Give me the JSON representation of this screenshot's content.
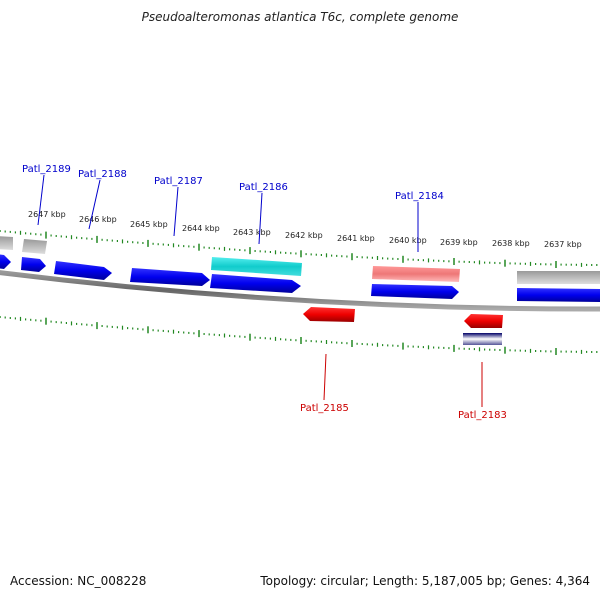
{
  "title": "Pseudoalteromonas atlantica T6c, complete genome",
  "footer": {
    "accession": "Accession: NC_008228",
    "summary": "Topology: circular; Length: 5,187,005 bp; Genes: 4,364"
  },
  "ruler": {
    "tick_labels": [
      "2647 kbp",
      "2646 kbp",
      "2645 kbp",
      "2644 kbp",
      "2643 kbp",
      "2642 kbp",
      "2641 kbp",
      "2640 kbp",
      "2639 kbp",
      "2638 kbp",
      "2637 kbp"
    ]
  },
  "gene_labels": {
    "forward": [
      "Patl_2189",
      "Patl_2188",
      "Patl_2187",
      "Patl_2186",
      "Patl_2184"
    ],
    "reverse": [
      "Patl_2185",
      "Patl_2183"
    ]
  },
  "colors": {
    "forward_label": "#0000cc",
    "reverse_label": "#cc0000",
    "cds_blue": "#0000ee",
    "cds_red": "#ee0000",
    "cds_cyan": "#11cccc",
    "cds_pink": "#ee7777",
    "cds_gray": "#bbbbbb",
    "backbone": "#777777",
    "ticks": "#228822"
  }
}
